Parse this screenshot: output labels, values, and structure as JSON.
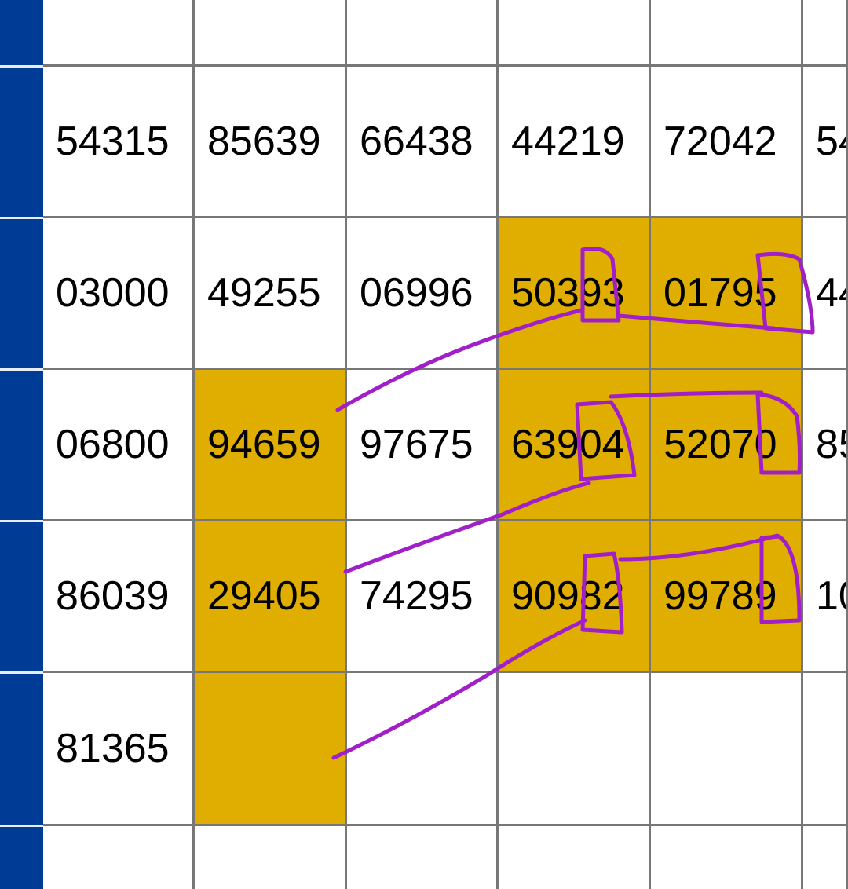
{
  "colors": {
    "row_header": "#003c96",
    "highlight": "#e0ae00",
    "annotation": "#a11fc8",
    "grid_line": "#777777"
  },
  "table": {
    "rows": [
      {
        "cells": [
          "",
          "",
          "",
          "",
          "",
          ""
        ],
        "highlight": [
          false,
          false,
          false,
          false,
          false,
          false
        ]
      },
      {
        "cells": [
          "54315",
          "85639",
          "66438",
          "44219",
          "72042",
          "54"
        ],
        "highlight": [
          false,
          false,
          false,
          false,
          false,
          false
        ]
      },
      {
        "cells": [
          "03000",
          "49255",
          "06996",
          "50393",
          "01795",
          "44"
        ],
        "highlight": [
          false,
          false,
          false,
          true,
          true,
          false
        ]
      },
      {
        "cells": [
          "06800",
          "94659",
          "97675",
          "63904",
          "52070",
          "85"
        ],
        "highlight": [
          false,
          true,
          false,
          true,
          true,
          false
        ]
      },
      {
        "cells": [
          "86039",
          "29405",
          "74295",
          "90982",
          "99789",
          "10"
        ],
        "highlight": [
          false,
          true,
          false,
          true,
          true,
          false
        ]
      },
      {
        "cells": [
          "81365",
          "",
          "",
          "",
          "",
          ""
        ],
        "highlight": [
          false,
          true,
          false,
          false,
          false,
          false
        ]
      },
      {
        "cells": [
          "",
          "",
          "",
          "",
          "",
          ""
        ],
        "highlight": [
          false,
          false,
          false,
          false,
          false,
          false
        ]
      }
    ]
  }
}
